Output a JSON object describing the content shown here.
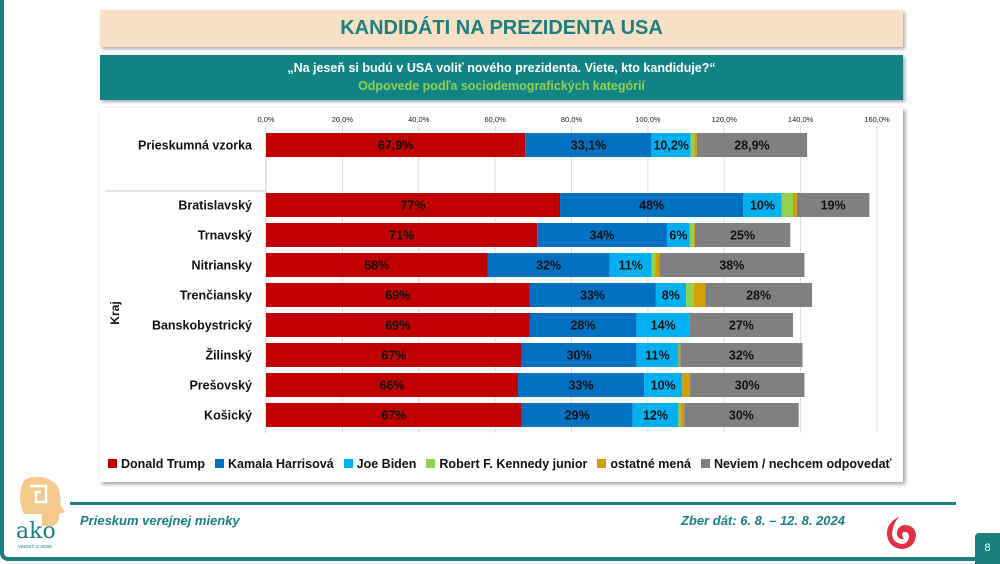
{
  "title": "KANDIDÁTI NA PREZIDENTA USA",
  "question": "„Na jeseň si budú v USA voliť nového prezidenta. Viete, kto kandiduje?“",
  "subtitle": "Odpovede podľa sociodemografických kategórií",
  "footer": {
    "left": "Prieskum verejnej mienky",
    "right": "Zber dát: 6. 8. – 12. 8. 2024",
    "page": "8",
    "logo_text": "ako",
    "logo_tagline": "VEDIEŤ O SEBE"
  },
  "chart_data": {
    "type": "bar",
    "orientation": "horizontal",
    "stacked": true,
    "xlim": [
      0,
      160
    ],
    "xticks": [
      "0,0%",
      "20,0%",
      "40,0%",
      "60,0%",
      "80,0%",
      "100,0%",
      "120,0%",
      "140,0%",
      "160,0%"
    ],
    "group_label": "Kraj",
    "grid": true,
    "legend_position": "bottom",
    "categories": [
      "Prieskumná vzorka",
      "Bratislavský",
      "Trnavský",
      "Nitriansky",
      "Trenčiansky",
      "Banskobystrický",
      "Žilinský",
      "Prešovský",
      "Košický"
    ],
    "series": [
      {
        "name": "Donald Trump",
        "color": "#c00000",
        "values": [
          67.9,
          77,
          71,
          58,
          69,
          69,
          67,
          66,
          67
        ],
        "labels": [
          "67,9%",
          "77%",
          "71%",
          "58%",
          "69%",
          "69%",
          "67%",
          "66%",
          "67%"
        ]
      },
      {
        "name": "Kamala Harrisová",
        "color": "#0070c0",
        "values": [
          33.1,
          48,
          34,
          32,
          33,
          28,
          30,
          33,
          29
        ],
        "labels": [
          "33,1%",
          "48%",
          "34%",
          "32%",
          "33%",
          "28%",
          "30%",
          "33%",
          "29%"
        ]
      },
      {
        "name": "Joe Biden",
        "color": "#00b0f0",
        "values": [
          10.2,
          10,
          6,
          11,
          8,
          14,
          11,
          10,
          12
        ],
        "labels": [
          "10,2%",
          "10%",
          "6%",
          "11%",
          "8%",
          "14%",
          "11%",
          "10%",
          "12%"
        ]
      },
      {
        "name": "Robert F. Kennedy junior",
        "color": "#92d050",
        "values": [
          1.0,
          3,
          1,
          1,
          2,
          0,
          0,
          0,
          0.5
        ],
        "labels": [
          "",
          "",
          "",
          "",
          "",
          "",
          "",
          "",
          ""
        ]
      },
      {
        "name": "ostatné mená",
        "color": "#d4a000",
        "values": [
          0.6,
          1,
          0.3,
          1,
          3,
          0,
          0.5,
          2,
          1
        ],
        "labels": [
          "",
          "",
          "",
          "",
          "",
          "",
          "",
          "",
          ""
        ]
      },
      {
        "name": "Neviem / nechcem odpovedať",
        "color": "#808080",
        "values": [
          28.9,
          19,
          25,
          38,
          28,
          27,
          32,
          30,
          30
        ],
        "labels": [
          "28,9%",
          "19%",
          "25%",
          "38%",
          "28%",
          "27%",
          "32%",
          "30%",
          "30%"
        ]
      }
    ]
  }
}
